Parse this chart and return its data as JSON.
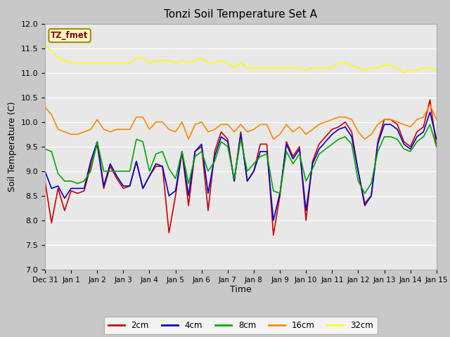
{
  "title": "Tonzi Soil Temperature Set A",
  "xlabel": "Time",
  "ylabel": "Soil Temperature (C)",
  "ylim": [
    7.0,
    12.0
  ],
  "yticks": [
    7.0,
    7.5,
    8.0,
    8.5,
    9.0,
    9.5,
    10.0,
    10.5,
    11.0,
    11.5,
    12.0
  ],
  "fig_bg_color": "#c8c8c8",
  "plot_bg_color": "#e8e8e8",
  "legend_label": "TZ_fmet",
  "series_colors": {
    "2cm": "#cc0000",
    "4cm": "#0000cc",
    "8cm": "#00aa00",
    "16cm": "#ff8800",
    "32cm": "#ffff00"
  },
  "x_tick_labels": [
    "Dec 31",
    "Jan 1",
    "Jan 2",
    "Jan 3",
    "Jan 4",
    "Jan 5",
    "Jan 6",
    "Jan 7",
    "Jan 8",
    "Jan 9",
    "Jan 10",
    "Jan 11",
    "Jan 12",
    "Jan 13",
    "Jan 14",
    "Jan 15"
  ],
  "series_2cm": [
    8.8,
    7.95,
    8.65,
    8.2,
    8.6,
    8.55,
    8.6,
    9.1,
    9.55,
    8.65,
    9.1,
    8.85,
    8.65,
    8.7,
    9.2,
    8.65,
    8.9,
    9.1,
    9.1,
    7.75,
    8.5,
    9.4,
    8.3,
    9.4,
    9.5,
    8.2,
    9.4,
    9.8,
    9.65,
    8.8,
    9.8,
    8.8,
    9.0,
    9.55,
    9.55,
    7.7,
    8.5,
    9.6,
    9.3,
    9.5,
    8.0,
    9.2,
    9.55,
    9.7,
    9.85,
    9.9,
    10.0,
    9.8,
    9.0,
    8.35,
    8.5,
    9.6,
    10.05,
    10.05,
    9.95,
    9.6,
    9.5,
    9.8,
    9.9,
    10.45,
    9.5
  ],
  "series_4cm": [
    9.0,
    8.65,
    8.7,
    8.45,
    8.65,
    8.65,
    8.65,
    9.2,
    9.6,
    8.7,
    9.15,
    8.9,
    8.7,
    8.7,
    9.2,
    8.65,
    8.9,
    9.15,
    9.1,
    8.5,
    8.6,
    9.4,
    8.5,
    9.4,
    9.55,
    8.55,
    9.3,
    9.7,
    9.6,
    8.8,
    9.75,
    8.8,
    9.0,
    9.4,
    9.4,
    8.0,
    8.55,
    9.55,
    9.25,
    9.45,
    8.2,
    9.15,
    9.45,
    9.6,
    9.75,
    9.85,
    9.9,
    9.7,
    9.0,
    8.3,
    8.5,
    9.55,
    9.95,
    9.95,
    9.85,
    9.55,
    9.45,
    9.7,
    9.8,
    10.2,
    9.65
  ],
  "series_8cm": [
    9.45,
    9.4,
    8.95,
    8.8,
    8.8,
    8.75,
    8.8,
    9.0,
    9.6,
    9.0,
    9.0,
    9.0,
    9.0,
    9.0,
    9.65,
    9.6,
    9.0,
    9.35,
    9.4,
    9.05,
    8.85,
    9.4,
    8.75,
    9.3,
    9.4,
    9.0,
    9.2,
    9.6,
    9.5,
    8.85,
    9.65,
    9.0,
    9.15,
    9.3,
    9.35,
    8.6,
    8.55,
    9.4,
    9.15,
    9.35,
    8.8,
    9.05,
    9.35,
    9.45,
    9.55,
    9.65,
    9.7,
    9.55,
    8.8,
    8.55,
    8.75,
    9.4,
    9.7,
    9.7,
    9.65,
    9.45,
    9.4,
    9.6,
    9.7,
    9.95,
    9.5
  ],
  "series_16cm": [
    10.3,
    10.15,
    9.85,
    9.8,
    9.75,
    9.75,
    9.8,
    9.85,
    10.05,
    9.85,
    9.8,
    9.85,
    9.85,
    9.85,
    10.1,
    10.1,
    9.85,
    10.0,
    10.0,
    9.85,
    9.8,
    10.0,
    9.65,
    9.95,
    10.0,
    9.8,
    9.85,
    9.95,
    9.95,
    9.8,
    9.95,
    9.8,
    9.85,
    9.95,
    9.95,
    9.65,
    9.75,
    9.95,
    9.8,
    9.9,
    9.75,
    9.85,
    9.95,
    10.0,
    10.05,
    10.1,
    10.1,
    10.05,
    9.8,
    9.65,
    9.75,
    9.95,
    10.05,
    10.05,
    10.0,
    9.95,
    9.9,
    10.05,
    10.1,
    10.35,
    10.05
  ],
  "series_32cm": [
    11.55,
    11.45,
    11.3,
    11.25,
    11.2,
    11.2,
    11.2,
    11.2,
    11.2,
    11.2,
    11.2,
    11.2,
    11.2,
    11.2,
    11.3,
    11.3,
    11.2,
    11.25,
    11.25,
    11.25,
    11.2,
    11.25,
    11.2,
    11.25,
    11.3,
    11.2,
    11.2,
    11.25,
    11.2,
    11.1,
    11.2,
    11.1,
    11.1,
    11.1,
    11.1,
    11.1,
    11.1,
    11.1,
    11.1,
    11.1,
    11.05,
    11.1,
    11.1,
    11.1,
    11.1,
    11.2,
    11.2,
    11.15,
    11.1,
    11.05,
    11.1,
    11.1,
    11.15,
    11.15,
    11.1,
    11.0,
    11.05,
    11.05,
    11.1,
    11.1,
    11.05
  ]
}
